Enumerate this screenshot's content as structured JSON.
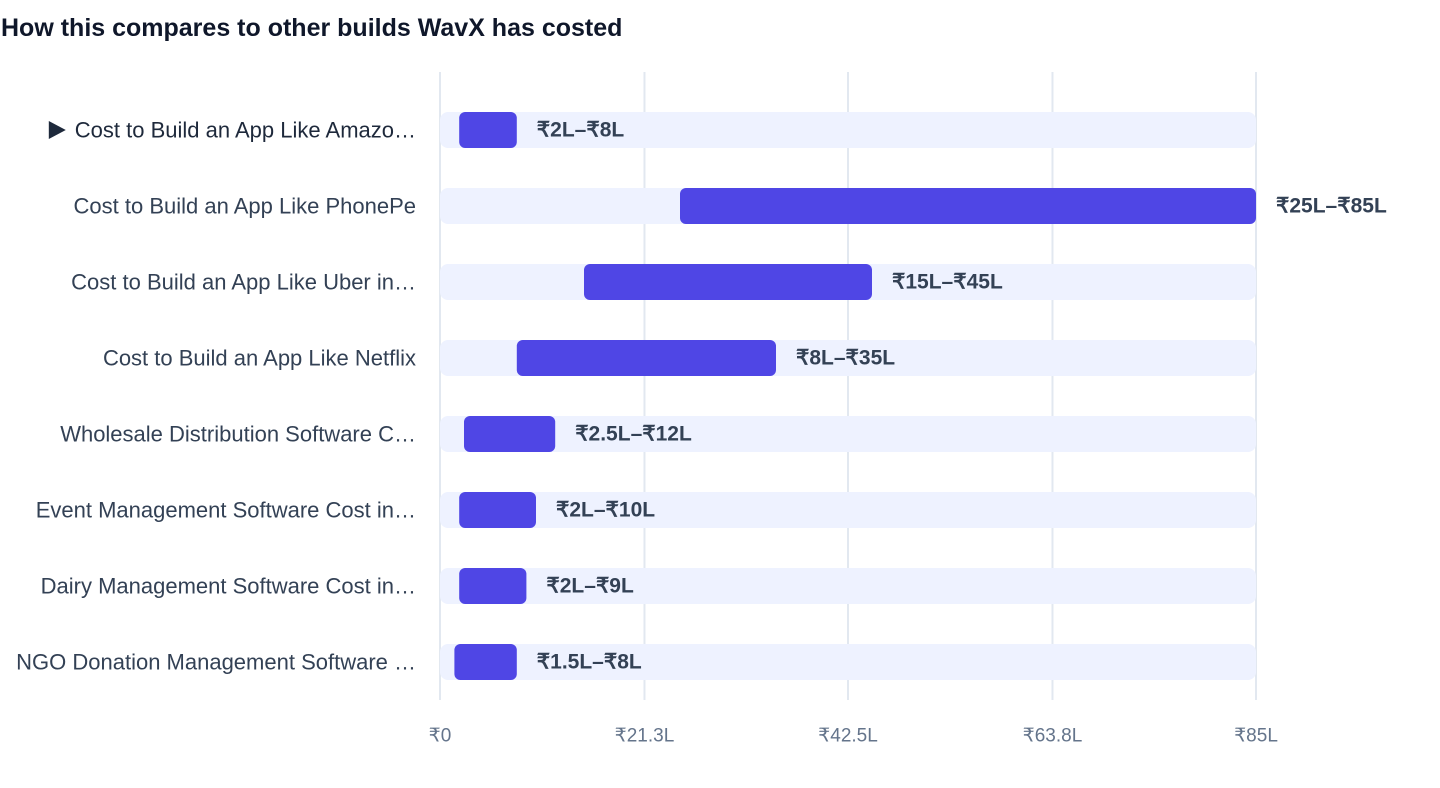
{
  "title": "How this compares to other builds WavX has costed",
  "colors": {
    "bar": "#4f46e5",
    "track": "#eef2ff",
    "grid": "#e2e8f0",
    "text": "#334155",
    "tick": "#64748b"
  },
  "chart_data": {
    "type": "bar",
    "orientation": "horizontal-range",
    "title": "How this compares to other builds WavX has costed",
    "xlim": [
      0,
      85
    ],
    "x_unit": "₹ lakh",
    "x_ticks": [
      0,
      21.3,
      42.5,
      63.8,
      85
    ],
    "x_tick_labels": [
      "₹0",
      "₹21.3L",
      "₹42.5L",
      "₹63.8L",
      "₹85L"
    ],
    "grid": true,
    "highlighted_index": 0,
    "categories": [
      "Cost to Build an App Like Amazo…",
      "Cost to Build an App Like PhonePe",
      "Cost to Build an App Like Uber in…",
      "Cost to Build an App Like Netflix",
      "Wholesale Distribution Software C…",
      "Event Management Software Cost in…",
      "Dairy Management Software Cost in…",
      "NGO Donation Management Software …"
    ],
    "ranges": [
      {
        "low": 2,
        "high": 8,
        "label": "₹2L–₹8L"
      },
      {
        "low": 25,
        "high": 85,
        "label": "₹25L–₹85L"
      },
      {
        "low": 15,
        "high": 45,
        "label": "₹15L–₹45L"
      },
      {
        "low": 8,
        "high": 35,
        "label": "₹8L–₹35L"
      },
      {
        "low": 2.5,
        "high": 12,
        "label": "₹2.5L–₹12L"
      },
      {
        "low": 2,
        "high": 10,
        "label": "₹2L–₹10L"
      },
      {
        "low": 2,
        "high": 9,
        "label": "₹2L–₹9L"
      },
      {
        "low": 1.5,
        "high": 8,
        "label": "₹1.5L–₹8L"
      }
    ]
  }
}
